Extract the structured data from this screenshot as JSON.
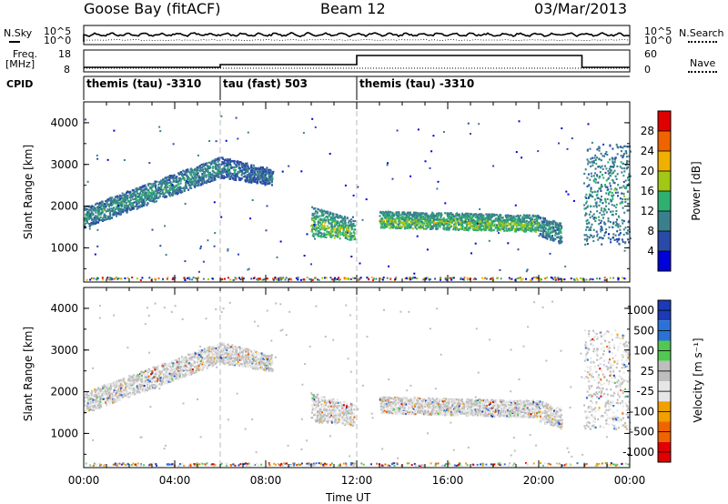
{
  "header": {
    "station": "Goose Bay (fitACF)",
    "beam": "Beam 12",
    "date": "03/Mar/2013"
  },
  "top_panels": {
    "nsky_label": "N.Sky",
    "nsky_ticks": [
      "10^5",
      "10^0"
    ],
    "nsearch_label": "N.Search",
    "nsearch_ticks": [
      "10^5",
      "10^0"
    ],
    "freq_label": "Freq.",
    "freq_unit": "[MHz]",
    "freq_ticks": [
      "18",
      "8"
    ],
    "nave_label": "Nave",
    "nave_ticks": [
      "60",
      "0"
    ],
    "cpid_label": "CPID",
    "cpid_segments": [
      {
        "label": "themis (tau) -3310",
        "start_hour": 0,
        "end_hour": 6
      },
      {
        "label": "tau (fast) 503",
        "start_hour": 6,
        "end_hour": 12
      },
      {
        "label": "themis (tau) -3310",
        "start_hour": 12,
        "end_hour": 24
      }
    ],
    "freq_steps": [
      {
        "start_hour": 0,
        "end_hour": 6,
        "level": 0.2
      },
      {
        "start_hour": 6,
        "end_hour": 12,
        "level": 0.35
      },
      {
        "start_hour": 12,
        "end_hour": 21.9,
        "level": 0.85
      },
      {
        "start_hour": 21.9,
        "end_hour": 24,
        "level": 0.2
      }
    ]
  },
  "chart_data": [
    {
      "type": "heatmap",
      "title": "Power",
      "xlabel": "Time UT",
      "ylabel": "Slant Range [km]",
      "xlim_hours": [
        0,
        24
      ],
      "ylim_km": [
        180,
        4500
      ],
      "x_tick_labels": [
        "00:00",
        "04:00",
        "08:00",
        "12:00",
        "16:00",
        "20:00",
        "00:00"
      ],
      "y_ticks": [
        1000,
        2000,
        3000,
        4000
      ],
      "colorbar_label": "Power [dB]",
      "colorbar_ticks": [
        4,
        8,
        12,
        16,
        20,
        24,
        28
      ],
      "colorbar_colors": [
        "#0000d8",
        "#2a4aa8",
        "#3a7f8e",
        "#2fb070",
        "#a0c814",
        "#f0b000",
        "#f06400",
        "#e00000"
      ],
      "bands": [
        {
          "t0": 0.0,
          "t1": 6.0,
          "r0": 1500,
          "r1": 2000,
          "r0e": 2700,
          "r1e": 3200,
          "value": 10
        },
        {
          "t0": 6.0,
          "t1": 8.3,
          "r0": 2700,
          "r1": 3200,
          "r0e": 2500,
          "r1e": 2900,
          "value": 8
        },
        {
          "t0": 10.0,
          "t1": 11.9,
          "r0": 1300,
          "r1": 2000,
          "r0e": 1200,
          "r1e": 1700,
          "value": 12
        },
        {
          "t0": 13.0,
          "t1": 20.0,
          "r0": 1500,
          "r1": 1900,
          "r0e": 1400,
          "r1e": 1800,
          "value": 12
        },
        {
          "t0": 20.0,
          "t1": 21.0,
          "r0": 1300,
          "r1": 1800,
          "r0e": 1100,
          "r1e": 1600,
          "value": 10
        },
        {
          "t0": 22.0,
          "t1": 24.0,
          "r0": 1100,
          "r1": 3500,
          "r0e": 1100,
          "r1e": 3500,
          "value": 10
        }
      ]
    },
    {
      "type": "heatmap",
      "title": "Velocity",
      "xlabel": "Time UT",
      "ylabel": "Slant Range [km]",
      "xlim_hours": [
        0,
        24
      ],
      "ylim_km": [
        180,
        4500
      ],
      "x_tick_labels": [
        "00:00",
        "04:00",
        "08:00",
        "12:00",
        "16:00",
        "20:00",
        "00:00"
      ],
      "y_ticks": [
        1000,
        2000,
        3000,
        4000
      ],
      "colorbar_label": "Velocity [m s⁻¹]",
      "colorbar_ticks": [
        1000,
        500,
        100,
        25,
        -25,
        -100,
        -500,
        -1000
      ],
      "colorbar_colors": [
        "#1a3ab8",
        "#2a72d8",
        "#52c852",
        "#bebebe",
        "#e6e6e6",
        "#f0a000",
        "#f06400",
        "#e00000"
      ],
      "dominant_value": 0
    }
  ]
}
